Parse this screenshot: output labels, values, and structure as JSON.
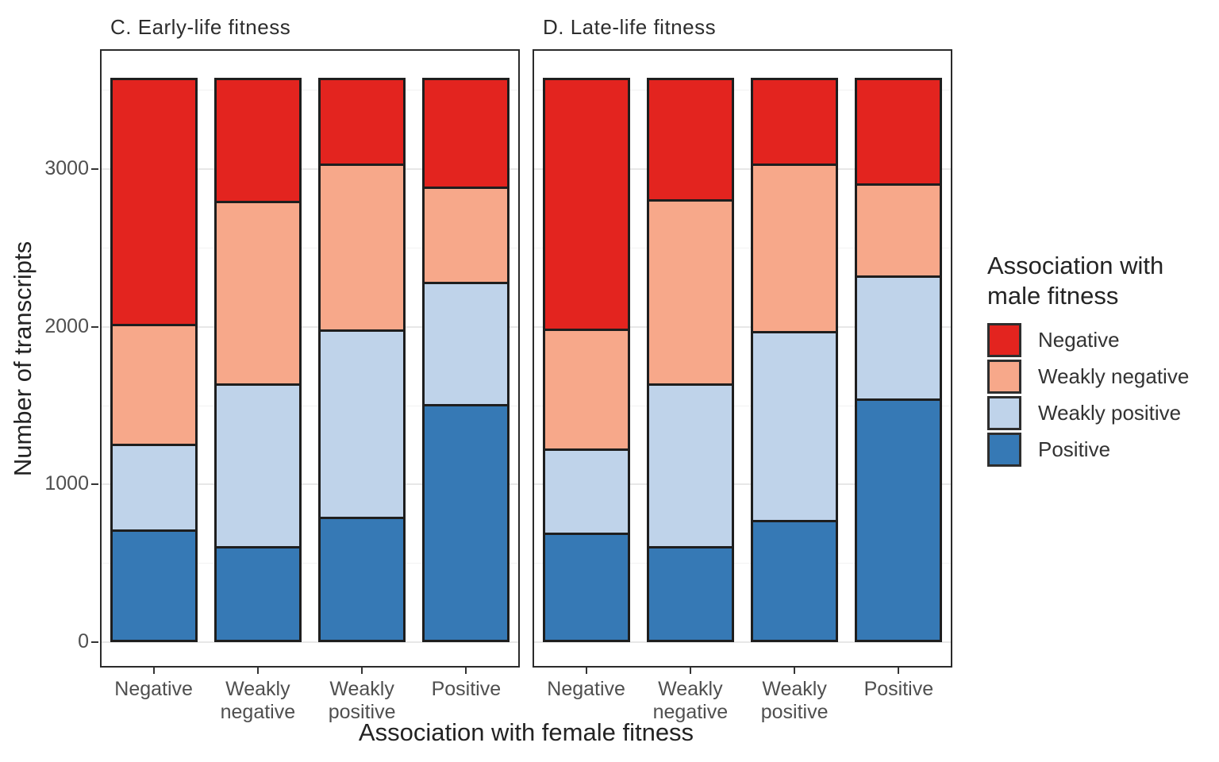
{
  "chart_data": {
    "type": "bar",
    "stacked": true,
    "panels": [
      {
        "title": "C. Early-life fitness",
        "series": [
          {
            "name": "Positive",
            "values": [
              700,
              590,
              780,
              1510
            ]
          },
          {
            "name": "Weakly positive",
            "values": [
              540,
              1040,
              1200,
              780
            ]
          },
          {
            "name": "Weakly negative",
            "values": [
              760,
              1170,
              1060,
              600
            ]
          },
          {
            "name": "Negative",
            "values": [
              1580,
              780,
              540,
              690
            ]
          }
        ]
      },
      {
        "title": "D. Late-life fitness",
        "series": [
          {
            "name": "Positive",
            "values": [
              680,
              590,
              760,
              1550
            ]
          },
          {
            "name": "Weakly positive",
            "values": [
              530,
              1040,
              1210,
              780
            ]
          },
          {
            "name": "Weakly negative",
            "values": [
              760,
              1180,
              1070,
              580
            ]
          },
          {
            "name": "Negative",
            "values": [
              1610,
              770,
              540,
              670
            ]
          }
        ]
      }
    ],
    "categories": [
      "Negative",
      "Weakly negative",
      "Weakly positive",
      "Positive"
    ],
    "x_tick_display": [
      "Negative",
      "Weakly\nnegative",
      "Weakly\npositive",
      "Positive"
    ],
    "xlabel": "Association with female fitness",
    "ylabel": "Number of transcripts",
    "yticks": [
      0,
      1000,
      2000,
      3000
    ],
    "yticks_minor": [
      500,
      1500,
      2500,
      3500
    ],
    "ylim": [
      -160,
      3760
    ],
    "bar_total": 3580,
    "series_order_bottom_to_top": [
      "Positive",
      "Weakly positive",
      "Weakly negative",
      "Negative"
    ],
    "colors": {
      "Negative": "#E3241F",
      "Weakly negative": "#F7A88A",
      "Weakly positive": "#BFD3EA",
      "Positive": "#3679B5"
    },
    "legend": {
      "title": "Association with\nmale fitness",
      "position": "right",
      "entries": [
        {
          "label": "Negative",
          "color": "#E3241F"
        },
        {
          "label": "Weakly negative",
          "color": "#F7A88A"
        },
        {
          "label": "Weakly positive",
          "color": "#BFD3EA"
        },
        {
          "label": "Positive",
          "color": "#3679B5"
        }
      ]
    }
  }
}
